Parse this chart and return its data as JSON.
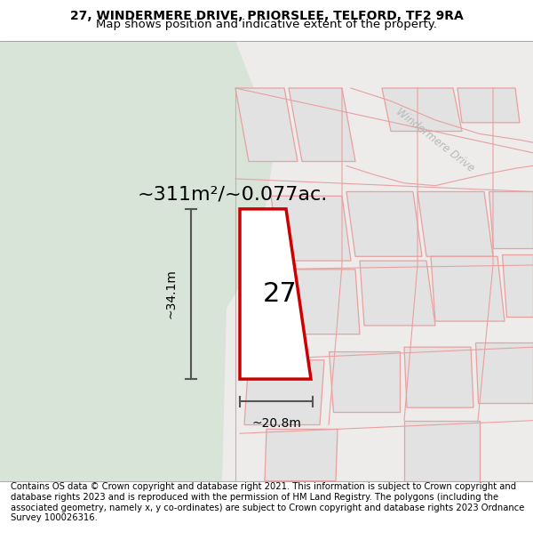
{
  "title_line1": "27, WINDERMERE DRIVE, PRIORSLEE, TELFORD, TF2 9RA",
  "title_line2": "Map shows position and indicative extent of the property.",
  "footer_text": "Contains OS data © Crown copyright and database right 2021. This information is subject to Crown copyright and database rights 2023 and is reproduced with the permission of HM Land Registry. The polygons (including the associated geometry, namely x, y co-ordinates) are subject to Crown copyright and database rights 2023 Ordnance Survey 100026316.",
  "area_label": "~311m²/~0.077ac.",
  "plot_number": "27",
  "dim_height": "~34.1m",
  "dim_width": "~20.8m",
  "road_label": "Windermere Drive",
  "bg_map_color": "#d8e4d8",
  "bg_road_color": "#eeebeb",
  "plot_fill": "#ffffff",
  "plot_border": "#cc0000",
  "other_plots_color": "#e2e2e2",
  "other_plots_border": "#e8a0a0",
  "title_fontsize": 10,
  "footer_fontsize": 7.2,
  "area_fontsize": 16,
  "plot_num_fontsize": 22,
  "road_label_color": "#b8b8b8",
  "road_label_fontsize": 8.5
}
